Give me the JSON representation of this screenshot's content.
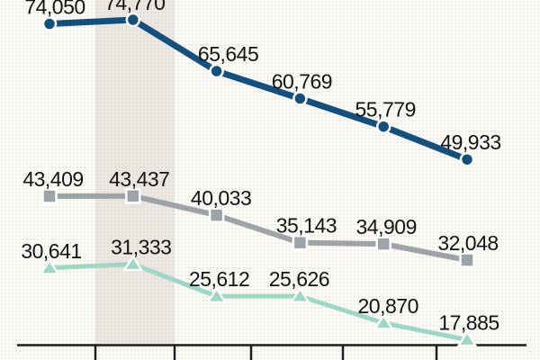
{
  "chart_data": {
    "type": "line",
    "title": "",
    "num_points": 6,
    "x_axis": {
      "tick_labels_visible": false,
      "axis_color": "#1E1E1E",
      "note": "axis and tick labels are cropped out of the visible screenshot"
    },
    "grid": false,
    "legend_visible": false,
    "background_color": "#FCFBF8",
    "label_color": "#141414",
    "marker_outline_color": "#FFFFFF",
    "highlight_band": {
      "category_index": 1,
      "color": "#ECE8E1"
    },
    "series": [
      {
        "id": "navy",
        "marker": "circle",
        "color": "#14507E",
        "values": [
          74050,
          74770,
          65645,
          60769,
          55779,
          49933
        ],
        "labels": [
          "74,050",
          "74,770",
          "65,645",
          "60,769",
          "55,779",
          "49,933"
        ]
      },
      {
        "id": "gray",
        "marker": "square",
        "color": "#9EA3A8",
        "values": [
          43409,
          43437,
          40033,
          35143,
          34909,
          32048
        ],
        "labels": [
          "43,409",
          "43,437",
          "40,033",
          "35,143",
          "34,909",
          "32,048"
        ]
      },
      {
        "id": "teal",
        "marker": "triangle",
        "color": "#9ED7C5",
        "values": [
          30641,
          31333,
          25612,
          25626,
          20870,
          17885
        ],
        "labels": [
          "30,641",
          "31,333",
          "25,612",
          "25,626",
          "20,870",
          "17,885"
        ]
      }
    ]
  }
}
